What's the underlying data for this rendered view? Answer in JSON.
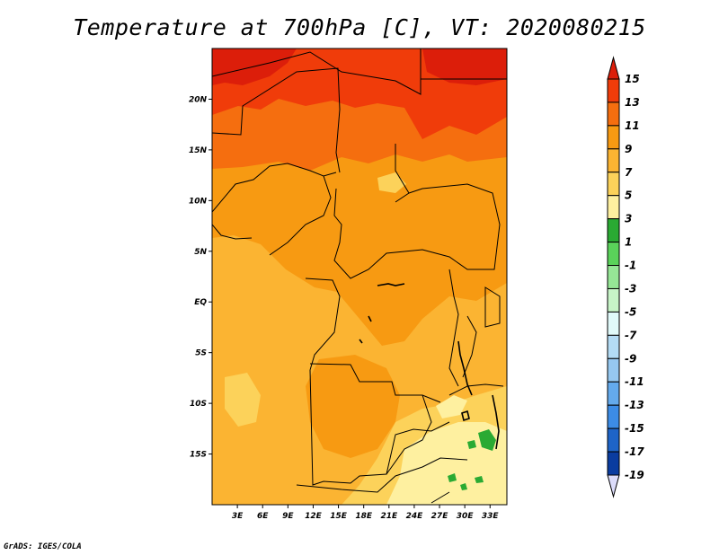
{
  "title": "Temperature at 700hPa [C], VT: 2020080215",
  "credit": "GrADS: IGES/COLA",
  "map": {
    "lon_range": [
      0,
      35
    ],
    "lat_range": [
      -20,
      25
    ],
    "y_ticks": [
      {
        "lat": 20,
        "label": "20N"
      },
      {
        "lat": 15,
        "label": "15N"
      },
      {
        "lat": 10,
        "label": "10N"
      },
      {
        "lat": 5,
        "label": "5N"
      },
      {
        "lat": 0,
        "label": "EQ"
      },
      {
        "lat": -5,
        "label": "5S"
      },
      {
        "lat": -10,
        "label": "10S"
      },
      {
        "lat": -15,
        "label": "15S"
      }
    ],
    "x_ticks": [
      {
        "lon": 3,
        "label": "3E"
      },
      {
        "lon": 6,
        "label": "6E"
      },
      {
        "lon": 9,
        "label": "9E"
      },
      {
        "lon": 12,
        "label": "12E"
      },
      {
        "lon": 15,
        "label": "15E"
      },
      {
        "lon": 18,
        "label": "18E"
      },
      {
        "lon": 21,
        "label": "21E"
      },
      {
        "lon": 24,
        "label": "24E"
      },
      {
        "lon": 27,
        "label": "27E"
      },
      {
        "lon": 30,
        "label": "30E"
      },
      {
        "lon": 33,
        "label": "33E"
      }
    ]
  },
  "colorbar": {
    "levels": [
      "15",
      "13",
      "11",
      "9",
      "7",
      "5",
      "3",
      "1",
      "-1",
      "-3",
      "-5",
      "-7",
      "-9",
      "-11",
      "-13",
      "-15",
      "-17",
      "-19"
    ],
    "colors": [
      "#dc1e0a",
      "#f03c0a",
      "#f56e0f",
      "#f79a12",
      "#fbb432",
      "#fcd25a",
      "#fef0a0",
      "#2aaa33",
      "#5ad25a",
      "#96e696",
      "#c8f5c8",
      "#e1fafa",
      "#b4dcf5",
      "#96c8f0",
      "#64aaec",
      "#3c8ce6",
      "#1e64c8",
      "#0a3ca0",
      "#08087a"
    ],
    "top_arrow_color": "#dc1e0a",
    "bottom_arrow_color": "#dcdcfa"
  }
}
